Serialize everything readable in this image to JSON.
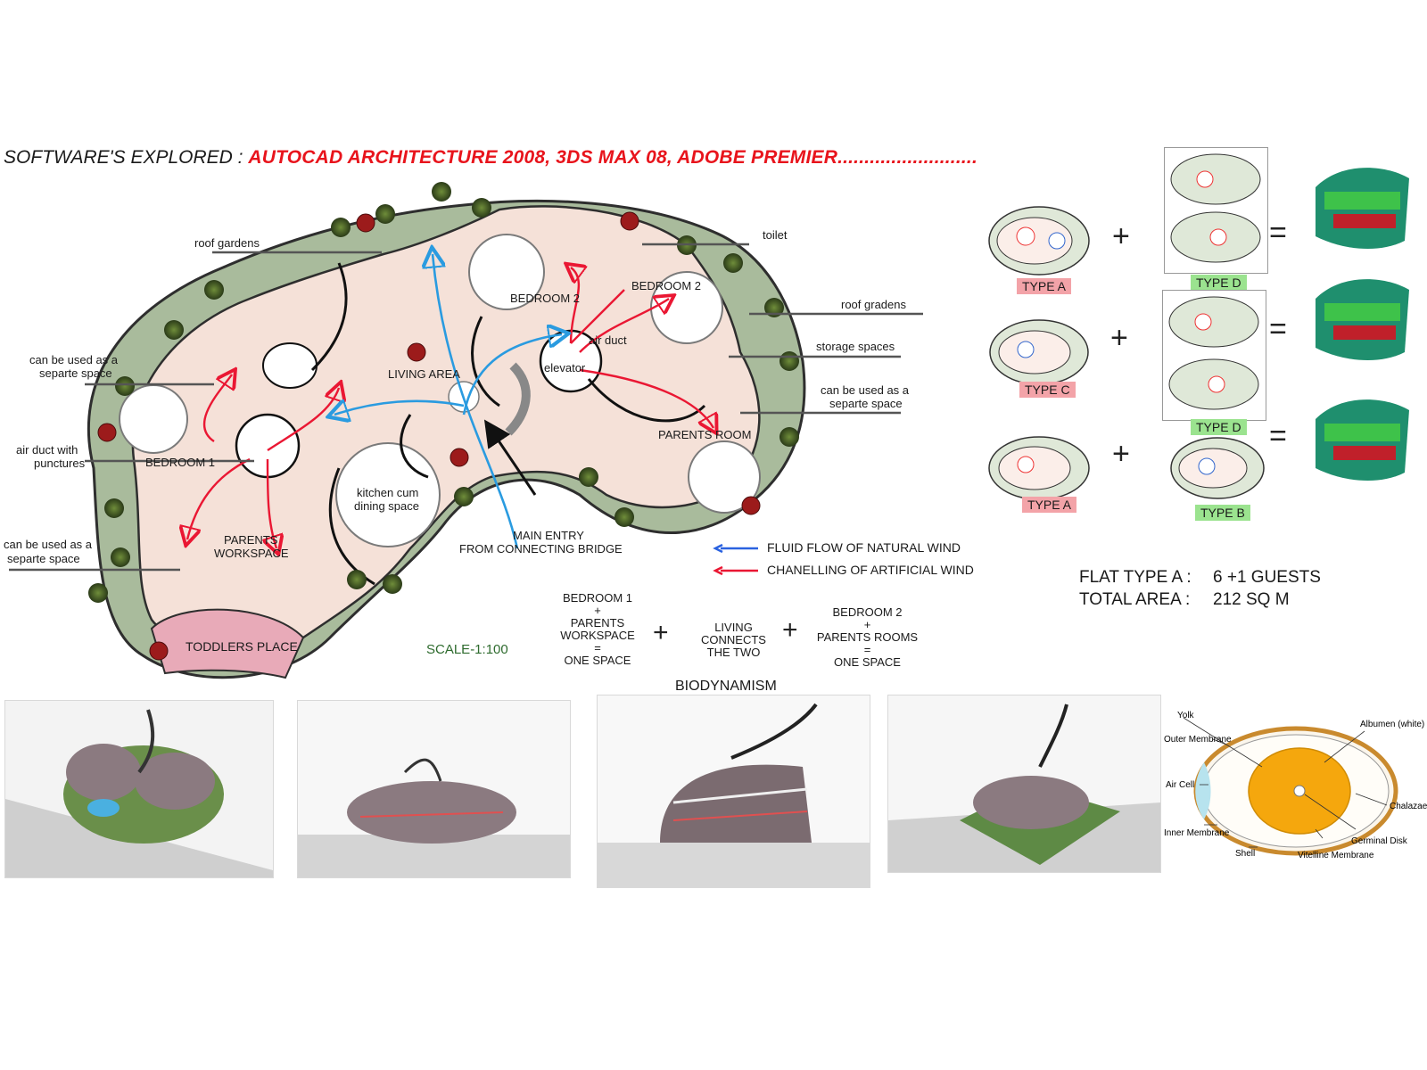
{
  "header": {
    "prefix": "SOFTWARE'S EXPLORED : ",
    "software": "AUTOCAD ARCHITECTURE 2008, 3DS MAX 08, ADOBE PREMIER.........................."
  },
  "plan": {
    "labels": {
      "roof_gardens": "roof gardens",
      "toilet": "toilet",
      "roof_gradens": "roof gradens",
      "storage_spaces": "storage spaces",
      "separate_right": [
        "can be used as a",
        "separte space"
      ],
      "separate_left_top": [
        "can be used as a",
        "separte space"
      ],
      "air_duct_left": [
        "air duct with",
        "punctures"
      ],
      "separate_left_bottom": [
        "can be used as a",
        "separte space"
      ],
      "bedroom_1": "BEDROOM 1",
      "bedroom_2a": "BEDROOM 2",
      "bedroom_2b": "BEDROOM 2",
      "living_area": "LIVING AREA",
      "air_duct": "air duct",
      "elevator": "elevator",
      "parents_room": "PARENTS ROOM",
      "kitchen": [
        "kitchen cum",
        "dining space"
      ],
      "parents_workspace": [
        "PARENTS",
        "WORKSPACE"
      ],
      "toddlers_place": "TODDLERS PLACE",
      "main_entry": [
        "MAIN ENTRY",
        "FROM CONNECTING BRIDGE"
      ],
      "scale": "SCALE-1:100"
    },
    "legend": {
      "natural": "FLUID FLOW OF NATURAL WIND",
      "artificial": "CHANELLING OF ARTIFICIAL WIND",
      "colors": {
        "natural": "#2a62e0",
        "artificial": "#ea1733"
      }
    }
  },
  "types": {
    "rows": [
      {
        "left": "TYPE A",
        "right": "TYPE D"
      },
      {
        "left": "TYPE C",
        "right": "TYPE D"
      },
      {
        "left": "TYPE A",
        "right": "TYPE B"
      }
    ],
    "plus": "+",
    "equals": "="
  },
  "flat": {
    "type_label": "FLAT TYPE A :",
    "type_value": "6 +1 GUESTS",
    "area_label": "TOTAL AREA :",
    "area_value": "212 SQ M"
  },
  "biodynamism": {
    "group1": [
      "BEDROOM 1",
      "+",
      "PARENTS",
      "WORKSPACE",
      "=",
      "ONE SPACE"
    ],
    "group2": [
      "LIVING",
      "CONNECTS",
      "THE TWO"
    ],
    "group3": [
      "BEDROOM 2",
      "+",
      "PARENTS ROOMS",
      "=",
      "ONE SPACE"
    ],
    "plus": "+",
    "title": "BIODYNAMISM"
  },
  "egg": {
    "labels": {
      "yolk": "Yolk",
      "outer_membrane": "Outer Membrane",
      "air_cell": "Air Cell",
      "inner_membrane": "Inner Membrane",
      "shell": "Shell",
      "albumen": "Albumen (white)",
      "chalazae": "Chalazae",
      "germinal_disk": "Germinal Disk",
      "vitelline_membrane": "Vitelline Membrane"
    },
    "colors": {
      "yolk": "#f5a70d",
      "shell": "#c98a2e"
    }
  }
}
